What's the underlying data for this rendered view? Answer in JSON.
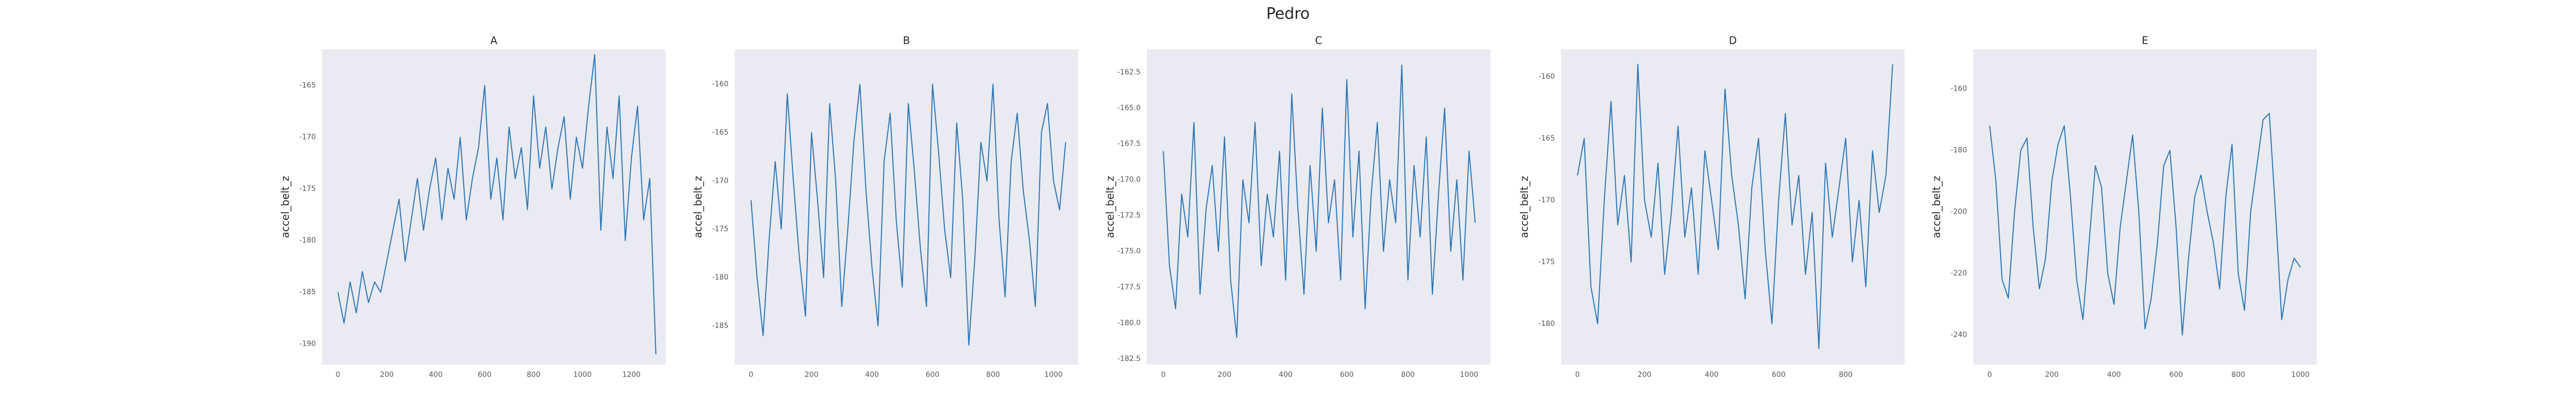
{
  "title": "Pedro",
  "chart_data": [
    {
      "type": "line",
      "title": "A",
      "ylabel": "accel_belt_z",
      "grid": false,
      "xlim": [
        -65,
        1340
      ],
      "ylim": [
        -192,
        -161.5
      ],
      "xticks": [
        0,
        200,
        400,
        600,
        800,
        1000,
        1200
      ],
      "yticks": [
        -165,
        -170,
        -175,
        -180,
        -185,
        -190
      ],
      "series": [
        {
          "color": "#2a76b4",
          "x": [
            0,
            25,
            50,
            75,
            100,
            125,
            150,
            175,
            200,
            225,
            250,
            275,
            300,
            325,
            350,
            375,
            400,
            425,
            450,
            475,
            500,
            525,
            550,
            575,
            600,
            625,
            650,
            675,
            700,
            725,
            750,
            775,
            800,
            825,
            850,
            875,
            900,
            925,
            950,
            975,
            1000,
            1025,
            1050,
            1075,
            1100,
            1125,
            1150,
            1175,
            1200,
            1225,
            1250,
            1275,
            1300
          ],
          "values": [
            -185,
            -188,
            -184,
            -187,
            -183,
            -186,
            -184,
            -185,
            -182,
            -179,
            -176,
            -182,
            -178,
            -174,
            -179,
            -175,
            -172,
            -178,
            -173,
            -176,
            -170,
            -178,
            -174,
            -171,
            -165,
            -176,
            -172,
            -178,
            -169,
            -174,
            -171,
            -177,
            -166,
            -173,
            -169,
            -175,
            -171,
            -168,
            -176,
            -170,
            -173,
            -167,
            -162,
            -179,
            -169,
            -174,
            -166,
            -180,
            -172,
            -167,
            -178,
            -174,
            -191
          ]
        }
      ]
    },
    {
      "type": "line",
      "title": "B",
      "ylabel": "accel_belt_z",
      "grid": false,
      "xlim": [
        -54,
        1082
      ],
      "ylim": [
        -189,
        -156.4
      ],
      "xticks": [
        0,
        200,
        400,
        600,
        800,
        1000
      ],
      "yticks": [
        -160,
        -165,
        -170,
        -175,
        -180,
        -185
      ],
      "series": [
        {
          "color": "#2a76b4",
          "x": [
            0,
            20,
            40,
            60,
            80,
            100,
            120,
            140,
            160,
            180,
            200,
            220,
            240,
            260,
            280,
            300,
            320,
            340,
            360,
            380,
            400,
            420,
            440,
            460,
            480,
            500,
            520,
            540,
            560,
            580,
            600,
            620,
            640,
            660,
            680,
            700,
            720,
            740,
            760,
            780,
            800,
            820,
            840,
            860,
            880,
            900,
            920,
            940,
            960,
            980,
            1000,
            1020,
            1040
          ],
          "values": [
            -172,
            -180,
            -186,
            -176,
            -168,
            -175,
            -161,
            -170,
            -178,
            -184,
            -165,
            -172,
            -180,
            -162,
            -170,
            -183,
            -175,
            -166,
            -160,
            -171,
            -179,
            -185,
            -168,
            -163,
            -174,
            -181,
            -162,
            -169,
            -177,
            -183,
            -160,
            -167,
            -175,
            -180,
            -164,
            -172,
            -187,
            -178,
            -166,
            -170,
            -160,
            -174,
            -182,
            -168,
            -163,
            -171,
            -176,
            -183,
            -165,
            -162,
            -170,
            -173,
            -166
          ]
        }
      ]
    },
    {
      "type": "line",
      "title": "C",
      "ylabel": "accel_belt_z",
      "grid": false,
      "xlim": [
        -54,
        1070
      ],
      "ylim": [
        -182.9,
        -160.9
      ],
      "xticks": [
        0,
        200,
        400,
        600,
        800,
        1000
      ],
      "yticks": [
        -162.5,
        {
          "value": -165,
          "label": "-165.0"
        },
        -167.5,
        {
          "value": -170,
          "label": "-170.0"
        },
        -172.5,
        {
          "value": -175,
          "label": "-175.0"
        },
        -177.5,
        {
          "value": -180,
          "label": "-180.0"
        },
        -182.5
      ],
      "series": [
        {
          "color": "#2a76b4",
          "x": [
            0,
            20,
            40,
            60,
            80,
            100,
            120,
            140,
            160,
            180,
            200,
            220,
            240,
            260,
            280,
            300,
            320,
            340,
            360,
            380,
            400,
            420,
            440,
            460,
            480,
            500,
            520,
            540,
            560,
            580,
            600,
            620,
            640,
            660,
            680,
            700,
            720,
            740,
            760,
            780,
            800,
            820,
            840,
            860,
            880,
            900,
            920,
            940,
            960,
            980,
            1000,
            1020
          ],
          "values": [
            -168,
            -176,
            -179,
            -171,
            -174,
            -166,
            -178,
            -172,
            -169,
            -175,
            -167,
            -177,
            -181,
            -170,
            -173,
            -166,
            -176,
            -171,
            -174,
            -168,
            -177,
            -164,
            -172,
            -178,
            -169,
            -175,
            -165,
            -173,
            -170,
            -177,
            -163,
            -174,
            -168,
            -179,
            -171,
            -166,
            -175,
            -170,
            -173,
            -162,
            -177,
            -169,
            -174,
            -167,
            -178,
            -171,
            -165,
            -175,
            -170,
            -177,
            -168,
            -173
          ]
        }
      ]
    },
    {
      "type": "line",
      "title": "D",
      "ylabel": "accel_belt_z",
      "grid": false,
      "xlim": [
        -49,
        976
      ],
      "ylim": [
        -183.3,
        -157.8
      ],
      "xticks": [
        0,
        200,
        400,
        600,
        800
      ],
      "yticks": [
        -160,
        -165,
        -170,
        -175,
        -180
      ],
      "series": [
        {
          "color": "#2a76b4",
          "x": [
            0,
            20,
            40,
            60,
            80,
            100,
            120,
            140,
            160,
            180,
            200,
            220,
            240,
            260,
            280,
            300,
            320,
            340,
            360,
            380,
            400,
            420,
            440,
            460,
            480,
            500,
            520,
            540,
            560,
            580,
            600,
            620,
            640,
            660,
            680,
            700,
            720,
            740,
            760,
            780,
            800,
            820,
            840,
            860,
            880,
            900,
            920,
            940
          ],
          "values": [
            -168,
            -165,
            -177,
            -180,
            -170,
            -162,
            -172,
            -168,
            -175,
            -159,
            -170,
            -173,
            -167,
            -176,
            -171,
            -164,
            -173,
            -169,
            -176,
            -166,
            -170,
            -174,
            -161,
            -168,
            -172,
            -178,
            -169,
            -165,
            -174,
            -180,
            -170,
            -163,
            -172,
            -168,
            -176,
            -171,
            -182,
            -167,
            -173,
            -169,
            -165,
            -175,
            -170,
            -177,
            -166,
            -171,
            -168,
            -159
          ]
        }
      ]
    },
    {
      "type": "line",
      "title": "E",
      "ylabel": "accel_belt_z",
      "grid": false,
      "xlim": [
        -53,
        1053
      ],
      "ylim": [
        -249.6,
        -147.2
      ],
      "xticks": [
        0,
        200,
        400,
        600,
        800,
        1000
      ],
      "yticks": [
        -160,
        -180,
        -200,
        -220,
        -240
      ],
      "series": [
        {
          "color": "#2a76b4",
          "x": [
            0,
            20,
            40,
            60,
            80,
            100,
            120,
            140,
            160,
            180,
            200,
            220,
            240,
            260,
            280,
            300,
            320,
            340,
            360,
            380,
            400,
            420,
            440,
            460,
            480,
            500,
            520,
            540,
            560,
            580,
            600,
            620,
            640,
            660,
            680,
            700,
            720,
            740,
            760,
            780,
            800,
            820,
            840,
            860,
            880,
            900,
            920,
            940,
            960,
            980,
            1000
          ],
          "values": [
            -172,
            -190,
            -222,
            -228,
            -200,
            -180,
            -176,
            -205,
            -225,
            -215,
            -190,
            -178,
            -172,
            -195,
            -222,
            -235,
            -210,
            -185,
            -192,
            -220,
            -230,
            -205,
            -190,
            -175,
            -200,
            -238,
            -228,
            -210,
            -185,
            -180,
            -205,
            -240,
            -215,
            -195,
            -188,
            -200,
            -210,
            -225,
            -195,
            -178,
            -220,
            -232,
            -200,
            -185,
            -170,
            -168,
            -200,
            -235,
            -222,
            -215,
            -218
          ]
        }
      ]
    }
  ]
}
